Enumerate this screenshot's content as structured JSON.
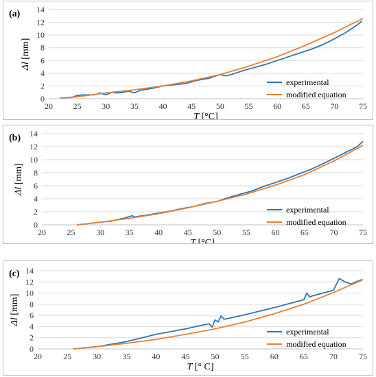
{
  "colors": {
    "experimental": "#2E75B6",
    "modified": "#ED7D31",
    "grid": "#d9d9d9",
    "axis": "#bfbfbf"
  },
  "chart_data": [
    {
      "type": "line",
      "panel_label": "(a)",
      "xlabel": "T [°C]",
      "ylabel": "Δl [mm]",
      "xlim": [
        20,
        75
      ],
      "ylim": [
        0,
        14
      ],
      "x_ticks": [
        20,
        25,
        30,
        35,
        40,
        45,
        50,
        55,
        60,
        65,
        70,
        75
      ],
      "y_ticks": [
        0,
        2,
        4,
        6,
        8,
        10,
        12,
        14
      ],
      "legend_position": "bottom-right",
      "series": [
        {
          "name": "experimental",
          "color": "#2E75B6",
          "x": [
            22.0,
            24.0,
            25.0,
            26.0,
            28.0,
            29.0,
            30.0,
            31.0,
            32.0,
            33.0,
            34.0,
            35.0,
            36.0,
            38.0,
            40.0,
            42.0,
            44.0,
            46.0,
            48.0,
            50.0,
            51.0,
            52.0,
            54.0,
            56.0,
            58.0,
            60.0,
            62.0,
            64.0,
            66.0,
            68.0,
            70.0,
            72.0,
            74.0,
            74.8
          ],
          "y": [
            0.1,
            0.2,
            0.5,
            0.6,
            0.6,
            0.9,
            0.6,
            1.0,
            0.9,
            1.0,
            1.2,
            0.9,
            1.3,
            1.6,
            2.0,
            2.2,
            2.4,
            2.9,
            3.2,
            3.8,
            3.6,
            3.8,
            4.4,
            4.9,
            5.4,
            6.0,
            6.6,
            7.2,
            7.8,
            8.5,
            9.4,
            10.4,
            11.6,
            12.2
          ]
        },
        {
          "name": "modified equation",
          "color": "#ED7D31",
          "x": [
            22.0,
            25.0,
            30.0,
            35.0,
            40.0,
            45.0,
            50.0,
            55.0,
            60.0,
            65.0,
            70.0,
            75.0
          ],
          "y": [
            0.1,
            0.3,
            0.9,
            1.4,
            2.0,
            2.8,
            3.8,
            5.1,
            6.6,
            8.4,
            10.4,
            12.6
          ]
        }
      ]
    },
    {
      "type": "line",
      "panel_label": "(b)",
      "xlabel": "T [°C]",
      "ylabel": "Δl [mm]",
      "xlim": [
        20,
        75
      ],
      "ylim": [
        0,
        14
      ],
      "x_ticks": [
        20,
        25,
        30,
        35,
        40,
        45,
        50,
        55,
        60,
        65,
        70,
        75
      ],
      "y_ticks": [
        0,
        2,
        4,
        6,
        8,
        10,
        12,
        14
      ],
      "legend_position": "bottom-right",
      "series": [
        {
          "name": "experimental",
          "color": "#2E75B6",
          "x": [
            26.0,
            28.0,
            30.0,
            32.0,
            34.0,
            35.5,
            36.0,
            36.5,
            38.0,
            40.0,
            42.0,
            44.0,
            46.0,
            48.0,
            50.0,
            52.0,
            54.0,
            56.0,
            58.0,
            60.0,
            62.0,
            64.0,
            66.0,
            68.0,
            70.0,
            72.0,
            74.0,
            75.0
          ],
          "y": [
            0.0,
            0.2,
            0.4,
            0.6,
            1.0,
            1.4,
            1.2,
            1.3,
            1.5,
            1.8,
            2.1,
            2.5,
            2.8,
            3.3,
            3.6,
            4.2,
            4.7,
            5.2,
            5.9,
            6.5,
            7.1,
            7.8,
            8.5,
            9.3,
            10.2,
            11.1,
            12.0,
            12.8
          ]
        },
        {
          "name": "modified equation",
          "color": "#ED7D31",
          "x": [
            26.0,
            30.0,
            35.0,
            40.0,
            45.0,
            50.0,
            55.0,
            60.0,
            65.0,
            70.0,
            75.0
          ],
          "y": [
            0.0,
            0.4,
            1.0,
            1.7,
            2.6,
            3.6,
            4.7,
            6.1,
            7.7,
            9.8,
            12.2
          ]
        }
      ]
    },
    {
      "type": "line",
      "panel_label": "(c)",
      "xlabel": "T [° C]",
      "ylabel": "Δl [mm]",
      "xlim": [
        20,
        75
      ],
      "ylim": [
        0,
        14
      ],
      "x_ticks": [
        20,
        25,
        30,
        35,
        40,
        45,
        50,
        55,
        60,
        65,
        70,
        75
      ],
      "y_ticks": [
        0,
        2,
        4,
        6,
        8,
        10,
        12,
        14
      ],
      "legend_position": "bottom-right",
      "series": [
        {
          "name": "experimental",
          "color": "#2E75B6",
          "x": [
            26.0,
            30.0,
            35.0,
            40.0,
            45.0,
            48.0,
            49.0,
            49.5,
            50.0,
            50.5,
            51.0,
            51.5,
            52.0,
            55.0,
            60.0,
            65.0,
            65.5,
            66.0,
            66.5,
            70.0,
            71.0,
            71.5,
            72.0,
            73.0,
            74.0,
            74.8
          ],
          "y": [
            0.0,
            0.4,
            1.3,
            2.6,
            3.6,
            4.3,
            4.5,
            3.9,
            5.2,
            4.8,
            5.9,
            5.3,
            5.4,
            6.1,
            7.4,
            8.8,
            10.0,
            9.3,
            9.5,
            10.5,
            12.6,
            12.3,
            12.0,
            11.6,
            12.1,
            12.4
          ]
        },
        {
          "name": "modified equation",
          "color": "#ED7D31",
          "x": [
            26.0,
            30.0,
            35.0,
            40.0,
            45.0,
            50.0,
            55.0,
            60.0,
            65.0,
            70.0,
            75.0
          ],
          "y": [
            0.0,
            0.4,
            1.0,
            1.7,
            2.6,
            3.6,
            4.8,
            6.3,
            8.0,
            10.1,
            12.4
          ]
        }
      ]
    }
  ]
}
